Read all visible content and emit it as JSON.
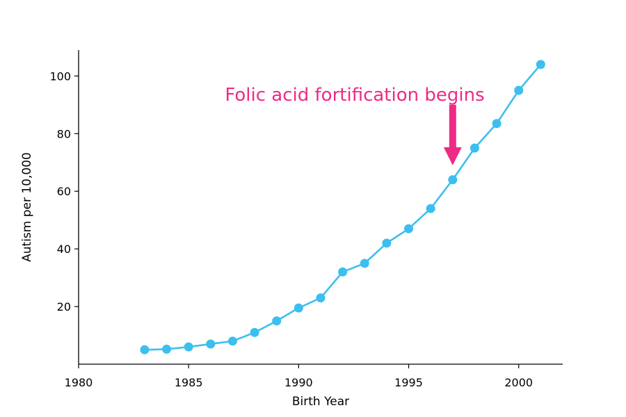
{
  "chart_data": {
    "type": "line",
    "title": "",
    "xlabel": "Birth Year",
    "ylabel": "Autism per 10,000",
    "xlim": [
      1980,
      2002
    ],
    "ylim": [
      0,
      109
    ],
    "x_ticks": [
      1980,
      1985,
      1990,
      1995,
      2000
    ],
    "y_ticks": [
      20,
      40,
      60,
      80,
      100
    ],
    "grid": false,
    "line_color": "#3cbfef",
    "series": [
      {
        "x": [
          1983,
          1984,
          1985,
          1986,
          1987,
          1988,
          1989,
          1990,
          1991,
          1992,
          1993,
          1994,
          1995,
          1996,
          1997,
          1998,
          1999,
          2000,
          2001
        ],
        "values": [
          5,
          5.2,
          6,
          7,
          8,
          11,
          15,
          19.5,
          23,
          32,
          35,
          42,
          47,
          54,
          64,
          75,
          83.5,
          95,
          104
        ]
      }
    ],
    "annotation": {
      "text": "Folic acid fortification begins",
      "color": "#ee2a87",
      "arrow_x": 1997,
      "arrow_from_y": 90,
      "arrow_to_y": 69
    }
  }
}
